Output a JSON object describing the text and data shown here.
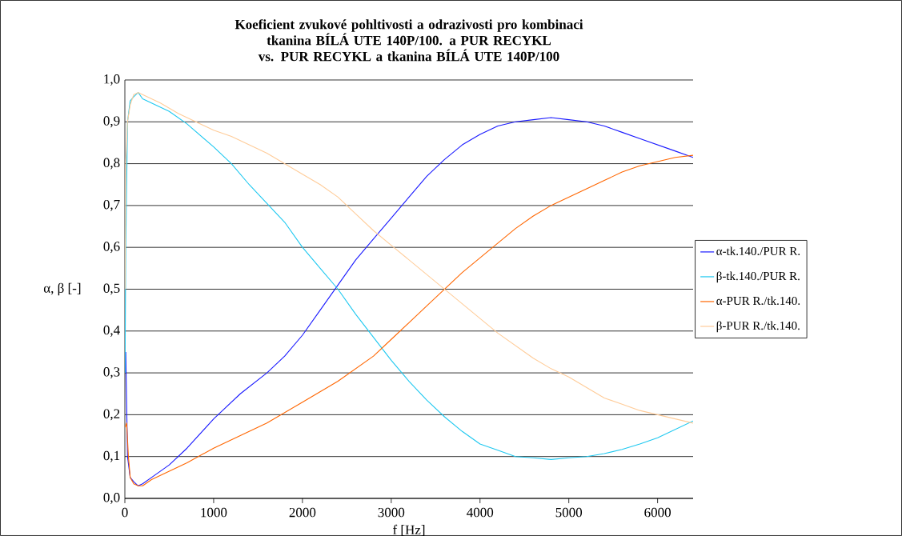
{
  "chart_data": {
    "type": "line",
    "title": "Koeficient zvukové pohltivosti a odrazivosti pro kombinaci tkanina BÍLÁ UTE 140P/100.  a PUR RECYKL",
    "subtitle": "vs.   PUR RECYKL a tkanina BÍLÁ UTE 140P/100",
    "xlabel": "f [Hz]",
    "ylabel": "α, β [-]",
    "xlim": [
      0,
      6400
    ],
    "xticks": [
      0,
      1000,
      2000,
      3000,
      4000,
      5000,
      6000
    ],
    "ylim": [
      0,
      1
    ],
    "yticks": [
      {
        "value": 0,
        "label": "0,0"
      },
      {
        "value": 0.1,
        "label": "0,1"
      },
      {
        "value": 0.2,
        "label": "0,2"
      },
      {
        "value": 0.3,
        "label": "0,3"
      },
      {
        "value": 0.4,
        "label": "0,4"
      },
      {
        "value": 0.5,
        "label": "0,5"
      },
      {
        "value": 0.6,
        "label": "0,6"
      },
      {
        "value": 0.7,
        "label": "0,7"
      },
      {
        "value": 0.8,
        "label": "0,8"
      },
      {
        "value": 0.9,
        "label": "0,9"
      },
      {
        "value": 1,
        "label": "1,0"
      }
    ],
    "grid": "y",
    "legend": "right",
    "marker": "none",
    "line_style": "solid",
    "series": [
      {
        "name": "α-tk.140./PUR R.",
        "color": "#1a1aff",
        "x": [
          10,
          30,
          60,
          100,
          150,
          200,
          300,
          500,
          700,
          1000,
          1300,
          1600,
          1800,
          2000,
          2200,
          2400,
          2600,
          2800,
          3000,
          3200,
          3400,
          3600,
          3800,
          4000,
          4200,
          4400,
          4600,
          4800,
          5000,
          5200,
          5400,
          5600,
          5800,
          6000,
          6200,
          6400
        ],
        "values": [
          0.35,
          0.1,
          0.05,
          0.04,
          0.03,
          0.035,
          0.05,
          0.08,
          0.12,
          0.19,
          0.25,
          0.3,
          0.34,
          0.39,
          0.45,
          0.51,
          0.57,
          0.62,
          0.67,
          0.72,
          0.77,
          0.81,
          0.845,
          0.87,
          0.89,
          0.9,
          0.905,
          0.91,
          0.905,
          0.9,
          0.89,
          0.875,
          0.86,
          0.845,
          0.83,
          0.815
        ]
      },
      {
        "name": "β-tk.140./PUR R.",
        "color": "#1ec8f0",
        "x": [
          2,
          10,
          30,
          60,
          100,
          150,
          200,
          300,
          500,
          700,
          1000,
          1200,
          1400,
          1600,
          1800,
          2000,
          2200,
          2400,
          2600,
          2800,
          3000,
          3200,
          3400,
          3600,
          3800,
          4000,
          4200,
          4400,
          4600,
          4800,
          5000,
          5200,
          5400,
          5600,
          5800,
          6000,
          6200,
          6400
        ],
        "values": [
          0.3,
          0.6,
          0.9,
          0.95,
          0.96,
          0.97,
          0.955,
          0.945,
          0.925,
          0.895,
          0.84,
          0.8,
          0.75,
          0.705,
          0.66,
          0.6,
          0.55,
          0.5,
          0.44,
          0.385,
          0.33,
          0.28,
          0.235,
          0.195,
          0.16,
          0.13,
          0.115,
          0.1,
          0.097,
          0.093,
          0.097,
          0.1,
          0.107,
          0.117,
          0.13,
          0.145,
          0.165,
          0.185
        ]
      },
      {
        "name": "α-PUR R./tk.140.",
        "color": "#ff6600",
        "x": [
          5,
          20,
          40,
          60,
          100,
          150,
          200,
          300,
          500,
          700,
          1000,
          1300,
          1600,
          2000,
          2400,
          2800,
          3000,
          3200,
          3400,
          3600,
          3800,
          4000,
          4200,
          4400,
          4600,
          4800,
          5000,
          5200,
          5400,
          5600,
          5800,
          6000,
          6200,
          6400
        ],
        "values": [
          0.17,
          0.18,
          0.1,
          0.05,
          0.035,
          0.03,
          0.03,
          0.045,
          0.065,
          0.085,
          0.12,
          0.15,
          0.18,
          0.23,
          0.28,
          0.34,
          0.38,
          0.42,
          0.46,
          0.5,
          0.54,
          0.575,
          0.61,
          0.645,
          0.675,
          0.7,
          0.72,
          0.74,
          0.76,
          0.78,
          0.795,
          0.805,
          0.815,
          0.82
        ]
      },
      {
        "name": "β-PUR R./tk.140.",
        "color": "#ffcc99",
        "x": [
          2,
          10,
          30,
          60,
          100,
          150,
          200,
          400,
          600,
          800,
          1000,
          1200,
          1400,
          1600,
          1800,
          2000,
          2200,
          2400,
          2600,
          2800,
          3000,
          3200,
          3400,
          3600,
          3800,
          4000,
          4200,
          4400,
          4600,
          4800,
          5000,
          5200,
          5400,
          5600,
          5800,
          6000,
          6200,
          6400
        ],
        "values": [
          0.5,
          0.8,
          0.9,
          0.94,
          0.965,
          0.97,
          0.965,
          0.945,
          0.92,
          0.9,
          0.88,
          0.865,
          0.845,
          0.825,
          0.8,
          0.775,
          0.75,
          0.72,
          0.68,
          0.64,
          0.605,
          0.57,
          0.535,
          0.5,
          0.465,
          0.43,
          0.395,
          0.365,
          0.335,
          0.31,
          0.29,
          0.265,
          0.24,
          0.225,
          0.21,
          0.2,
          0.19,
          0.18
        ]
      }
    ]
  }
}
